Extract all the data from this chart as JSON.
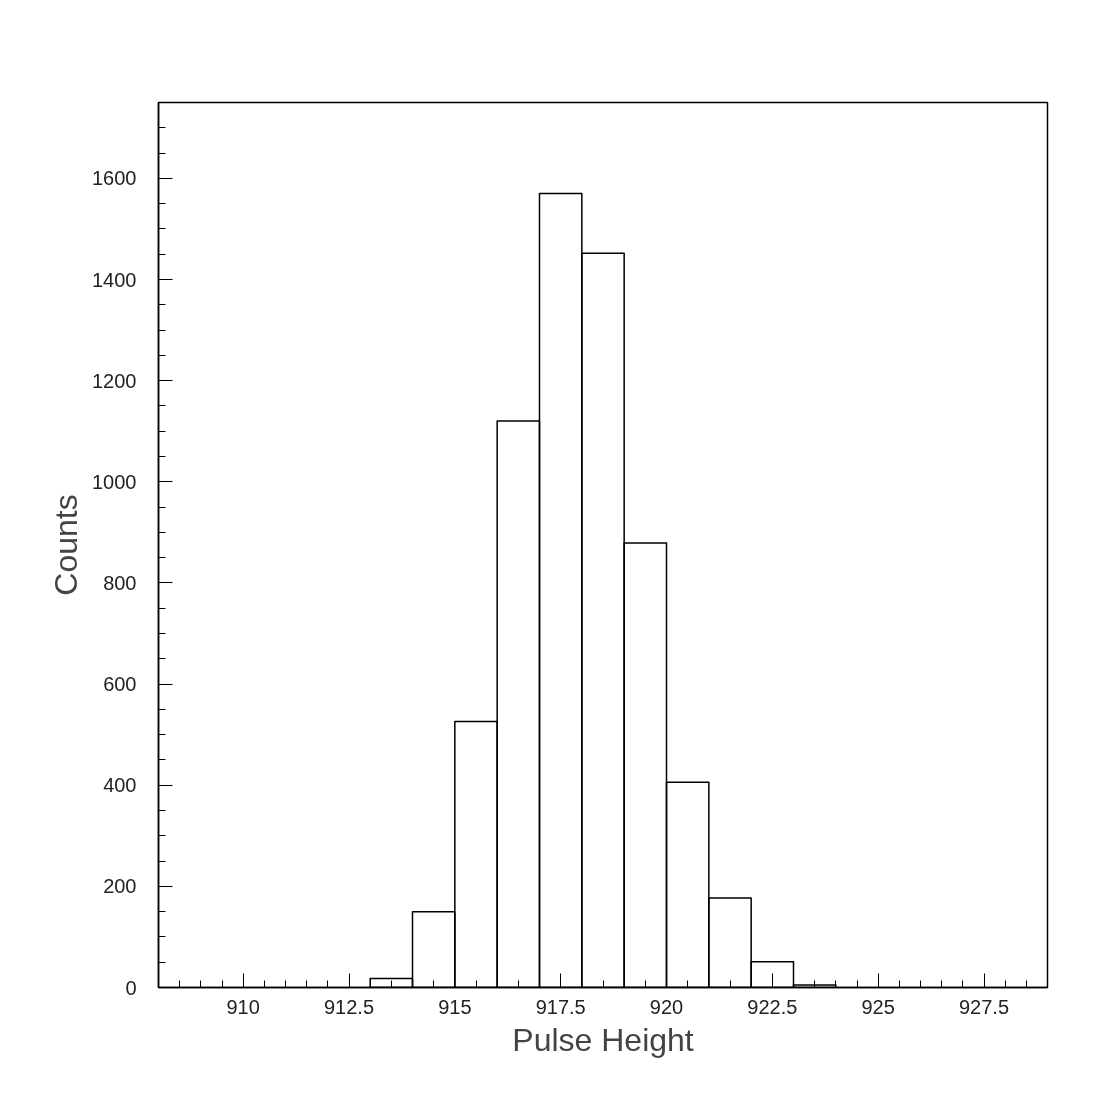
{
  "chart_data": {
    "type": "histogram",
    "xlabel": "Pulse Height",
    "ylabel": "Counts",
    "bins": [
      913,
      914,
      915,
      916,
      917,
      918,
      919,
      920,
      921,
      922,
      923,
      924
    ],
    "values": [
      18,
      150,
      526,
      1120,
      1570,
      1452,
      879,
      406,
      177,
      51,
      5
    ],
    "color": "#000000",
    "xlim": [
      908,
      929
    ],
    "ylim": [
      0,
      1750
    ],
    "xticks": [
      {
        "value": 908.5,
        "label": null
      },
      {
        "value": 909,
        "label": null
      },
      {
        "value": 909.5,
        "label": null
      },
      910,
      {
        "value": 910.5,
        "label": null
      },
      {
        "value": 911,
        "label": null
      },
      {
        "value": 911.5,
        "label": null
      },
      {
        "value": 912,
        "label": null
      },
      912.5,
      {
        "value": 913,
        "label": null
      },
      {
        "value": 913.5,
        "label": null
      },
      {
        "value": 914,
        "label": null
      },
      {
        "value": 914.5,
        "label": null
      },
      915,
      {
        "value": 915.5,
        "label": null
      },
      {
        "value": 916,
        "label": null
      },
      {
        "value": 916.5,
        "label": null
      },
      {
        "value": 917,
        "label": null
      },
      917.5,
      {
        "value": 918,
        "label": null
      },
      {
        "value": 918.5,
        "label": null
      },
      {
        "value": 919,
        "label": null
      },
      {
        "value": 919.5,
        "label": null
      },
      920,
      {
        "value": 920.5,
        "label": null
      },
      {
        "value": 921,
        "label": null
      },
      {
        "value": 921.5,
        "label": null
      },
      {
        "value": 922,
        "label": null
      },
      922.5,
      {
        "value": 923,
        "label": null
      },
      {
        "value": 923.5,
        "label": null
      },
      {
        "value": 924,
        "label": null
      },
      {
        "value": 924.5,
        "label": null
      },
      925,
      {
        "value": 925.5,
        "label": null
      },
      {
        "value": 926,
        "label": null
      },
      {
        "value": 926.5,
        "label": null
      },
      {
        "value": 927,
        "label": null
      },
      927.5,
      {
        "value": 928,
        "label": null
      },
      {
        "value": 928.5,
        "label": null
      }
    ],
    "yticks": [
      0,
      {
        "value": 50,
        "label": null
      },
      {
        "value": 100,
        "label": null
      },
      {
        "value": 150,
        "label": null
      },
      200,
      {
        "value": 250,
        "label": null
      },
      {
        "value": 300,
        "label": null
      },
      {
        "value": 350,
        "label": null
      },
      400,
      {
        "value": 450,
        "label": null
      },
      {
        "value": 500,
        "label": null
      },
      {
        "value": 550,
        "label": null
      },
      600,
      {
        "value": 650,
        "label": null
      },
      {
        "value": 700,
        "label": null
      },
      {
        "value": 750,
        "label": null
      },
      800,
      {
        "value": 850,
        "label": null
      },
      {
        "value": 900,
        "label": null
      },
      {
        "value": 950,
        "label": null
      },
      1000,
      {
        "value": 1050,
        "label": null
      },
      {
        "value": 1100,
        "label": null
      },
      {
        "value": 1150,
        "label": null
      },
      1200,
      {
        "value": 1250,
        "label": null
      },
      {
        "value": 1300,
        "label": null
      },
      {
        "value": 1350,
        "label": null
      },
      1400,
      {
        "value": 1450,
        "label": null
      },
      {
        "value": 1500,
        "label": null
      },
      {
        "value": 1550,
        "label": null
      },
      1600,
      {
        "value": 1650,
        "label": null
      },
      {
        "value": 1700,
        "label": null
      }
    ],
    "grid": false
  }
}
